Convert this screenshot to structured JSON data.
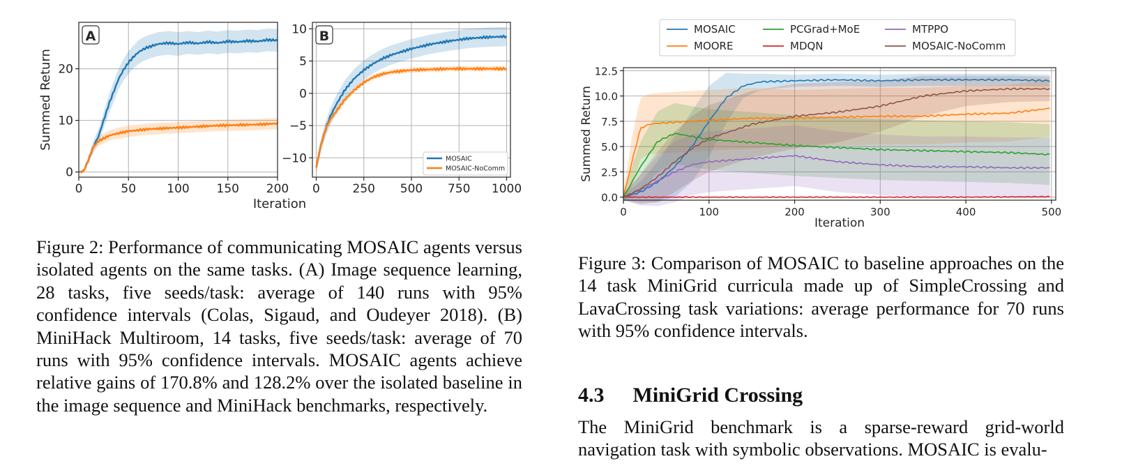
{
  "figure2": {
    "caption_label": "Figure 2:",
    "caption_text": "Performance of communicating MOSAIC agents versus isolated agents on the same tasks. (A) Image sequence learning, 28 tasks, five seeds/task: average of 140 runs with 95% confidence intervals (Colas, Sigaud, and Oudeyer 2018). (B) MiniHack Multiroom, 14 tasks, five seeds/task: average of 70 runs with 95% confidence intervals. MOSAIC agents achieve relative gains of 170.8% and 128.2% over the isolated baseline in the image sequence and MiniHack benchmarks, respectively."
  },
  "figure3": {
    "caption_label": "Figure 3:",
    "caption_text": "Comparison of MOSAIC to baseline approaches on the 14 task MiniGrid curricula made up of SimpleCrossing and LavaCrossing task variations: average performance for 70 runs with 95% confidence intervals."
  },
  "section": {
    "number": "4.3",
    "title": "MiniGrid Crossing",
    "body": "The MiniGrid benchmark is a sparse-reward grid-world navigation task with symbolic observations. MOSAIC is evalu-"
  },
  "colors": {
    "MOSAIC": "#1f77b4",
    "MOORE": "#ff7f0e",
    "MOSAIC-NoComm": "#ff7f0e",
    "PCGrad+MoE": "#2ca02c",
    "MDQN": "#d62728",
    "MTPPO": "#9467bd",
    "MOSAIC-NoComm-fig3": "#8c564b"
  },
  "chart_data": [
    {
      "id": "fig2A",
      "type": "line",
      "panel_label": "A",
      "xlabel": "",
      "ylabel": "Summed Return",
      "xlim": [
        0,
        200
      ],
      "ylim": [
        -1,
        29
      ],
      "xticks": [
        0,
        50,
        100,
        150,
        200
      ],
      "yticks": [
        0,
        10,
        20
      ],
      "grid": true,
      "series": [
        {
          "name": "MOSAIC",
          "x": [
            0,
            5,
            10,
            15,
            20,
            25,
            30,
            35,
            40,
            45,
            50,
            55,
            60,
            65,
            70,
            75,
            80,
            90,
            100,
            110,
            120,
            130,
            140,
            150,
            160,
            170,
            180,
            190,
            200
          ],
          "y": [
            0,
            0.2,
            2.5,
            5,
            7,
            10,
            13,
            15.5,
            18,
            19.8,
            21.2,
            22.3,
            23.2,
            23.8,
            24.2,
            24.5,
            24.8,
            25,
            24.8,
            25.1,
            24.9,
            25.2,
            25,
            25.3,
            25.2,
            25.4,
            25.3,
            25.6,
            25.5
          ],
          "ci": [
            0,
            0.3,
            0.8,
            1.2,
            1.4,
            1.6,
            1.8,
            2,
            2,
            2.1,
            2.2,
            2.2,
            2.3,
            2.3,
            2.3,
            2.3,
            2.3,
            2.3,
            2.3,
            2.2,
            2.2,
            2.2,
            2.2,
            2.2,
            2.2,
            2.2,
            2.2,
            2.2,
            2.2
          ]
        },
        {
          "name": "MOSAIC-NoComm",
          "x": [
            0,
            5,
            10,
            15,
            20,
            25,
            30,
            35,
            40,
            45,
            50,
            60,
            70,
            80,
            90,
            100,
            120,
            140,
            160,
            180,
            200
          ],
          "y": [
            0,
            0.2,
            2.5,
            5,
            6,
            6.5,
            7,
            7.3,
            7.5,
            7.7,
            7.9,
            8.1,
            8.3,
            8.4,
            8.5,
            8.6,
            8.8,
            9,
            9.1,
            9.2,
            9.4
          ],
          "ci": [
            0,
            0.3,
            0.6,
            0.8,
            0.9,
            1,
            1,
            1,
            1.1,
            1.1,
            1.1,
            1.1,
            1.1,
            1.1,
            1.1,
            1.1,
            1.1,
            1.1,
            1.1,
            1.1,
            1.1
          ]
        }
      ]
    },
    {
      "id": "fig2B",
      "type": "line",
      "panel_label": "B",
      "xlabel": "Iteration",
      "ylabel": "",
      "xlim": [
        -20,
        1020
      ],
      "ylim": [
        -13,
        11
      ],
      "xticks": [
        0,
        250,
        500,
        750,
        1000
      ],
      "yticks": [
        -10,
        -5,
        0,
        5,
        10
      ],
      "grid": true,
      "legend": {
        "position": "bottom-right",
        "entries": [
          "MOSAIC",
          "MOSAIC-NoComm"
        ]
      },
      "series": [
        {
          "name": "MOSAIC",
          "x": [
            0,
            25,
            50,
            75,
            100,
            150,
            200,
            250,
            300,
            350,
            400,
            500,
            600,
            700,
            800,
            900,
            1000
          ],
          "y": [
            -11.5,
            -8,
            -5.5,
            -3.5,
            -2,
            0.5,
            2.3,
            3.6,
            4.6,
            5.4,
            6,
            6.9,
            7.6,
            8.1,
            8.5,
            8.7,
            8.8
          ],
          "ci": [
            0.8,
            1,
            1.2,
            1.3,
            1.4,
            1.5,
            1.5,
            1.5,
            1.5,
            1.5,
            1.5,
            1.5,
            1.5,
            1.5,
            1.5,
            1.5,
            1.5
          ]
        },
        {
          "name": "MOSAIC-NoComm",
          "x": [
            0,
            25,
            50,
            75,
            100,
            150,
            200,
            250,
            300,
            350,
            400,
            500,
            600,
            700,
            800,
            900,
            1000
          ],
          "y": [
            -11.5,
            -8,
            -5.5,
            -4,
            -3,
            -1,
            0.5,
            1.7,
            2.5,
            3,
            3.3,
            3.6,
            3.7,
            3.8,
            3.8,
            3.8,
            3.8
          ],
          "ci": [
            0.8,
            0.8,
            0.8,
            0.7,
            0.6,
            0.5,
            0.4,
            0.4,
            0.4,
            0.4,
            0.4,
            0.4,
            0.4,
            0.4,
            0.4,
            0.4,
            0.4
          ]
        }
      ]
    },
    {
      "id": "fig3",
      "type": "line",
      "xlabel": "Iteration",
      "ylabel": "Summed Return",
      "xlim": [
        0,
        505
      ],
      "ylim": [
        -0.3,
        12.8
      ],
      "xticks": [
        0,
        100,
        200,
        300,
        400,
        500
      ],
      "yticks": [
        "0.0",
        "2.5",
        "5.0",
        "7.5",
        "10.0",
        "12.5"
      ],
      "grid": true,
      "legend": {
        "position": "top-center",
        "entries": [
          "MOSAIC",
          "MOORE",
          "PCGrad+MoE",
          "MDQN",
          "MTPPO",
          "MOSAIC-NoComm"
        ]
      },
      "series": [
        {
          "name": "MOSAIC",
          "x": [
            0,
            20,
            40,
            60,
            80,
            100,
            120,
            140,
            160,
            200,
            250,
            300,
            350,
            400,
            450,
            500
          ],
          "y": [
            0,
            0.5,
            1.5,
            3,
            5,
            7.5,
            9.8,
            11,
            11.4,
            11.5,
            11.6,
            11.5,
            11.6,
            11.6,
            11.6,
            11.5
          ],
          "ci": [
            0.3,
            1,
            2,
            3,
            3.5,
            3.5,
            2.5,
            1.2,
            0.8,
            0.6,
            0.6,
            0.6,
            0.6,
            0.6,
            0.6,
            0.6
          ]
        },
        {
          "name": "MOORE",
          "x": [
            0,
            10,
            20,
            30,
            40,
            60,
            80,
            100,
            150,
            200,
            250,
            300,
            350,
            400,
            450,
            500
          ],
          "y": [
            0,
            3.5,
            6.8,
            7.2,
            7.3,
            7.4,
            7.5,
            7.6,
            7.8,
            7.8,
            7.9,
            8,
            8,
            8.2,
            8.3,
            8.8
          ],
          "ci": [
            0.5,
            2.5,
            3,
            3,
            3,
            3,
            3,
            3,
            3,
            2.8,
            2.8,
            2.8,
            2.8,
            2.8,
            2.8,
            2.8
          ]
        },
        {
          "name": "PCGrad+MoE",
          "x": [
            0,
            20,
            40,
            60,
            80,
            100,
            150,
            200,
            250,
            300,
            350,
            400,
            450,
            500
          ],
          "y": [
            0,
            3,
            5.5,
            6.3,
            6,
            5.7,
            5.4,
            5.1,
            4.9,
            4.7,
            4.6,
            4.5,
            4.4,
            4.2
          ],
          "ci": [
            0.5,
            2.5,
            3,
            3,
            3,
            3,
            3,
            3,
            3,
            3,
            3,
            3,
            3,
            3
          ]
        },
        {
          "name": "MDQN",
          "x": [
            0,
            100,
            200,
            300,
            400,
            500
          ],
          "y": [
            0,
            0,
            0,
            0,
            0,
            0.05
          ],
          "ci": [
            0,
            0,
            0,
            0,
            0,
            0
          ]
        },
        {
          "name": "MTPPO",
          "x": [
            0,
            20,
            40,
            60,
            80,
            100,
            150,
            200,
            250,
            300,
            350,
            400,
            450,
            500
          ],
          "y": [
            0,
            0.7,
            1.6,
            2.5,
            3.2,
            3.5,
            3.8,
            4.1,
            3.5,
            3.2,
            3,
            3,
            2.9,
            2.9
          ],
          "ci": [
            0.3,
            1.5,
            2.5,
            3,
            3,
            3,
            3,
            3,
            3,
            3,
            3,
            3,
            3,
            3
          ]
        },
        {
          "name": "MOSAIC-NoComm",
          "x": [
            0,
            20,
            40,
            60,
            80,
            100,
            150,
            200,
            250,
            300,
            350,
            400,
            450,
            500
          ],
          "y": [
            0,
            0.8,
            2,
            3.5,
            4.8,
            5.8,
            7.2,
            8,
            8.4,
            9,
            10,
            10.5,
            10.7,
            10.7
          ],
          "ci": [
            0.3,
            1.5,
            2.5,
            3,
            3.2,
            3.3,
            3.3,
            3.2,
            3,
            2.5,
            2,
            1.5,
            1.3,
            1.2
          ]
        }
      ]
    }
  ]
}
